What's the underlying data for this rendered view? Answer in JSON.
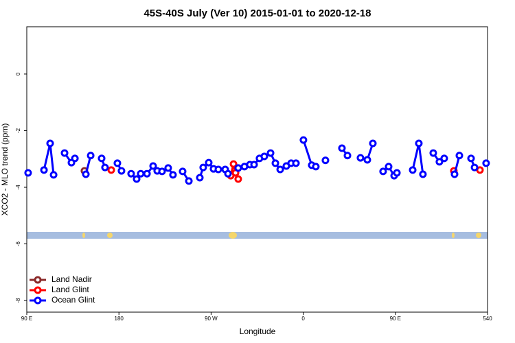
{
  "chart_data": {
    "type": "line",
    "title": "45S-40S July (Ver 10)   2015-01-01 to 2020-12-18",
    "x_label": "Longitude",
    "y_label": "XCO2 - MLO trend (ppm)",
    "xlim": [
      90,
      540
    ],
    "xticks": [
      {
        "value": 90,
        "label": "90 E"
      },
      180,
      {
        "value": 270,
        "label": "90 W"
      },
      {
        "value": 360,
        "label": "0"
      },
      {
        "value": 450,
        "label": "90 E"
      },
      540
    ],
    "ylim": [
      -8.41,
      1.67
    ],
    "yticks": [
      0,
      -2,
      -4,
      -6,
      -8
    ],
    "legend": "bottom-left",
    "series": [
      {
        "name": "Land Nadir",
        "color": "#8b2a2a",
        "x": [
          146.3
        ],
        "values": [
          -3.42
        ]
      },
      {
        "name": "Land Glint",
        "color": "#ff0000",
        "x": [
          172.5,
          null,
          289.2,
          291.9,
          293.9,
          296.5,
          null,
          507.1,
          null,
          532.6
        ],
        "values": [
          -3.39,
          null,
          -3.59,
          -3.18,
          -3.49,
          -3.71,
          null,
          -3.42,
          null,
          -3.39
        ]
      },
      {
        "name": "Ocean Glint",
        "color": "#0000ff",
        "x": [
          91.3,
          null,
          106.8,
          112.8,
          116.2,
          null,
          126.9,
          133.6,
          137.0,
          null,
          147.7,
          152.4,
          null,
          163.1,
          166.4,
          null,
          178.5,
          182.5,
          null,
          191.9,
          197.3,
          201.3,
          207.4,
          213.4,
          217.4,
          222.1,
          228.1,
          232.8,
          null,
          242.2,
          248.3,
          null,
          259.0,
          262.3,
          267.7,
          272.4,
          277.1,
          283.8,
          286.5,
          null,
          296.5,
          302.6,
          307.9,
          312.0,
          317.3,
          322.0,
          328.1,
          332.8,
          337.5,
          343.5,
          348.2,
          352.9,
          null,
          360.2,
          368.3,
          372.3,
          null,
          381.7,
          null,
          397.8,
          403.2,
          null,
          415.9,
          422.6,
          428.0,
          null,
          438.0,
          443.4,
          448.8,
          451.5,
          null,
          466.9,
          472.9,
          476.9,
          null,
          487.0,
          493.0,
          497.7,
          null,
          507.8,
          512.5,
          null,
          523.9,
          527.3,
          null,
          538.6
        ],
        "values": [
          -3.49,
          null,
          -3.39,
          -2.45,
          -3.56,
          null,
          -2.79,
          -3.13,
          -2.98,
          null,
          -3.54,
          -2.88,
          null,
          -2.98,
          -3.3,
          null,
          -3.15,
          -3.42,
          null,
          -3.52,
          -3.71,
          -3.52,
          -3.52,
          -3.25,
          -3.42,
          -3.44,
          -3.32,
          -3.56,
          null,
          -3.44,
          -3.78,
          null,
          -3.66,
          -3.3,
          -3.13,
          -3.35,
          -3.37,
          -3.37,
          -3.52,
          null,
          -3.32,
          -3.27,
          -3.2,
          -3.2,
          -2.98,
          -2.91,
          -2.79,
          -3.15,
          -3.37,
          -3.25,
          -3.15,
          -3.15,
          null,
          -2.33,
          -3.22,
          -3.27,
          null,
          -3.05,
          null,
          -2.62,
          -2.88,
          null,
          -2.96,
          -3.03,
          -2.45,
          null,
          -3.44,
          -3.27,
          -3.59,
          -3.49,
          null,
          -3.39,
          -2.45,
          -3.54,
          null,
          -2.79,
          -3.1,
          -2.98,
          null,
          -3.54,
          -2.88,
          null,
          -2.98,
          -3.3,
          null,
          -3.15
        ]
      }
    ]
  }
}
